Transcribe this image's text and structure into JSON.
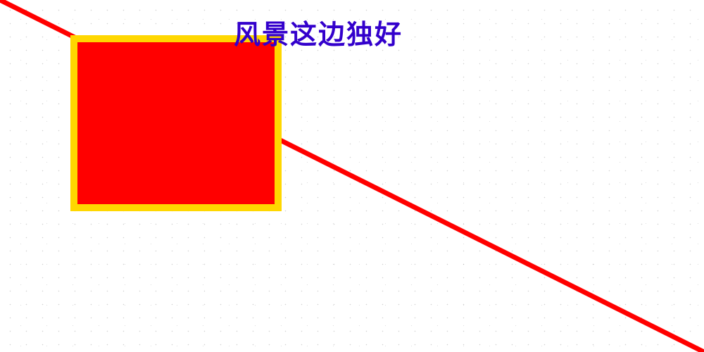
{
  "caption": {
    "text": "风景这边独好",
    "color": "#3300cc"
  },
  "shapes": {
    "line_color": "#ff0000",
    "box_fill_color": "#ff0000",
    "box_border_color": "#ffd700"
  }
}
